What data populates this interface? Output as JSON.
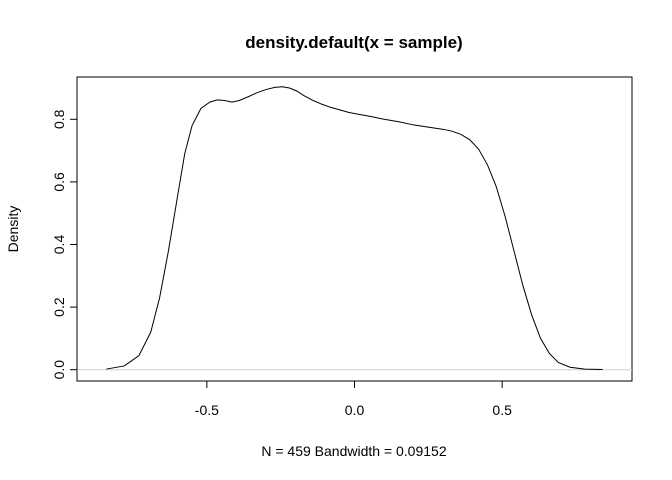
{
  "chart_data": {
    "type": "line",
    "title": "density.default(x = sample)",
    "xlabel": "N = 459   Bandwidth = 0.09152",
    "ylabel": "Density",
    "xlim": [
      -0.87,
      0.87
    ],
    "ylim": [
      0,
      0.9
    ],
    "x_ticks": [
      -0.5,
      0.0,
      0.5
    ],
    "x_tick_labels": [
      "-0.5",
      "0.0",
      "0.5"
    ],
    "y_ticks": [
      0.0,
      0.2,
      0.4,
      0.6,
      0.8
    ],
    "y_tick_labels": [
      "0.0",
      "0.2",
      "0.4",
      "0.6",
      "0.8"
    ],
    "grid": false,
    "series": [
      {
        "x": [
          -0.84,
          -0.78,
          -0.73,
          -0.69,
          -0.66,
          -0.63,
          -0.6,
          -0.575,
          -0.55,
          -0.52,
          -0.49,
          -0.465,
          -0.44,
          -0.415,
          -0.39,
          -0.36,
          -0.33,
          -0.3,
          -0.27,
          -0.245,
          -0.22,
          -0.195,
          -0.17,
          -0.14,
          -0.11,
          -0.08,
          -0.05,
          -0.02,
          0.02,
          0.06,
          0.1,
          0.15,
          0.2,
          0.25,
          0.3,
          0.33,
          0.36,
          0.39,
          0.42,
          0.45,
          0.48,
          0.51,
          0.54,
          0.57,
          0.6,
          0.63,
          0.66,
          0.69,
          0.73,
          0.78,
          0.84
        ],
        "y": [
          0.002,
          0.012,
          0.045,
          0.12,
          0.23,
          0.38,
          0.55,
          0.69,
          0.78,
          0.835,
          0.855,
          0.862,
          0.86,
          0.855,
          0.86,
          0.872,
          0.885,
          0.895,
          0.902,
          0.904,
          0.9,
          0.89,
          0.875,
          0.86,
          0.848,
          0.838,
          0.83,
          0.822,
          0.815,
          0.808,
          0.8,
          0.792,
          0.782,
          0.775,
          0.768,
          0.762,
          0.752,
          0.735,
          0.705,
          0.655,
          0.585,
          0.49,
          0.38,
          0.27,
          0.175,
          0.1,
          0.052,
          0.023,
          0.008,
          0.002,
          0.0005
        ]
      }
    ]
  }
}
